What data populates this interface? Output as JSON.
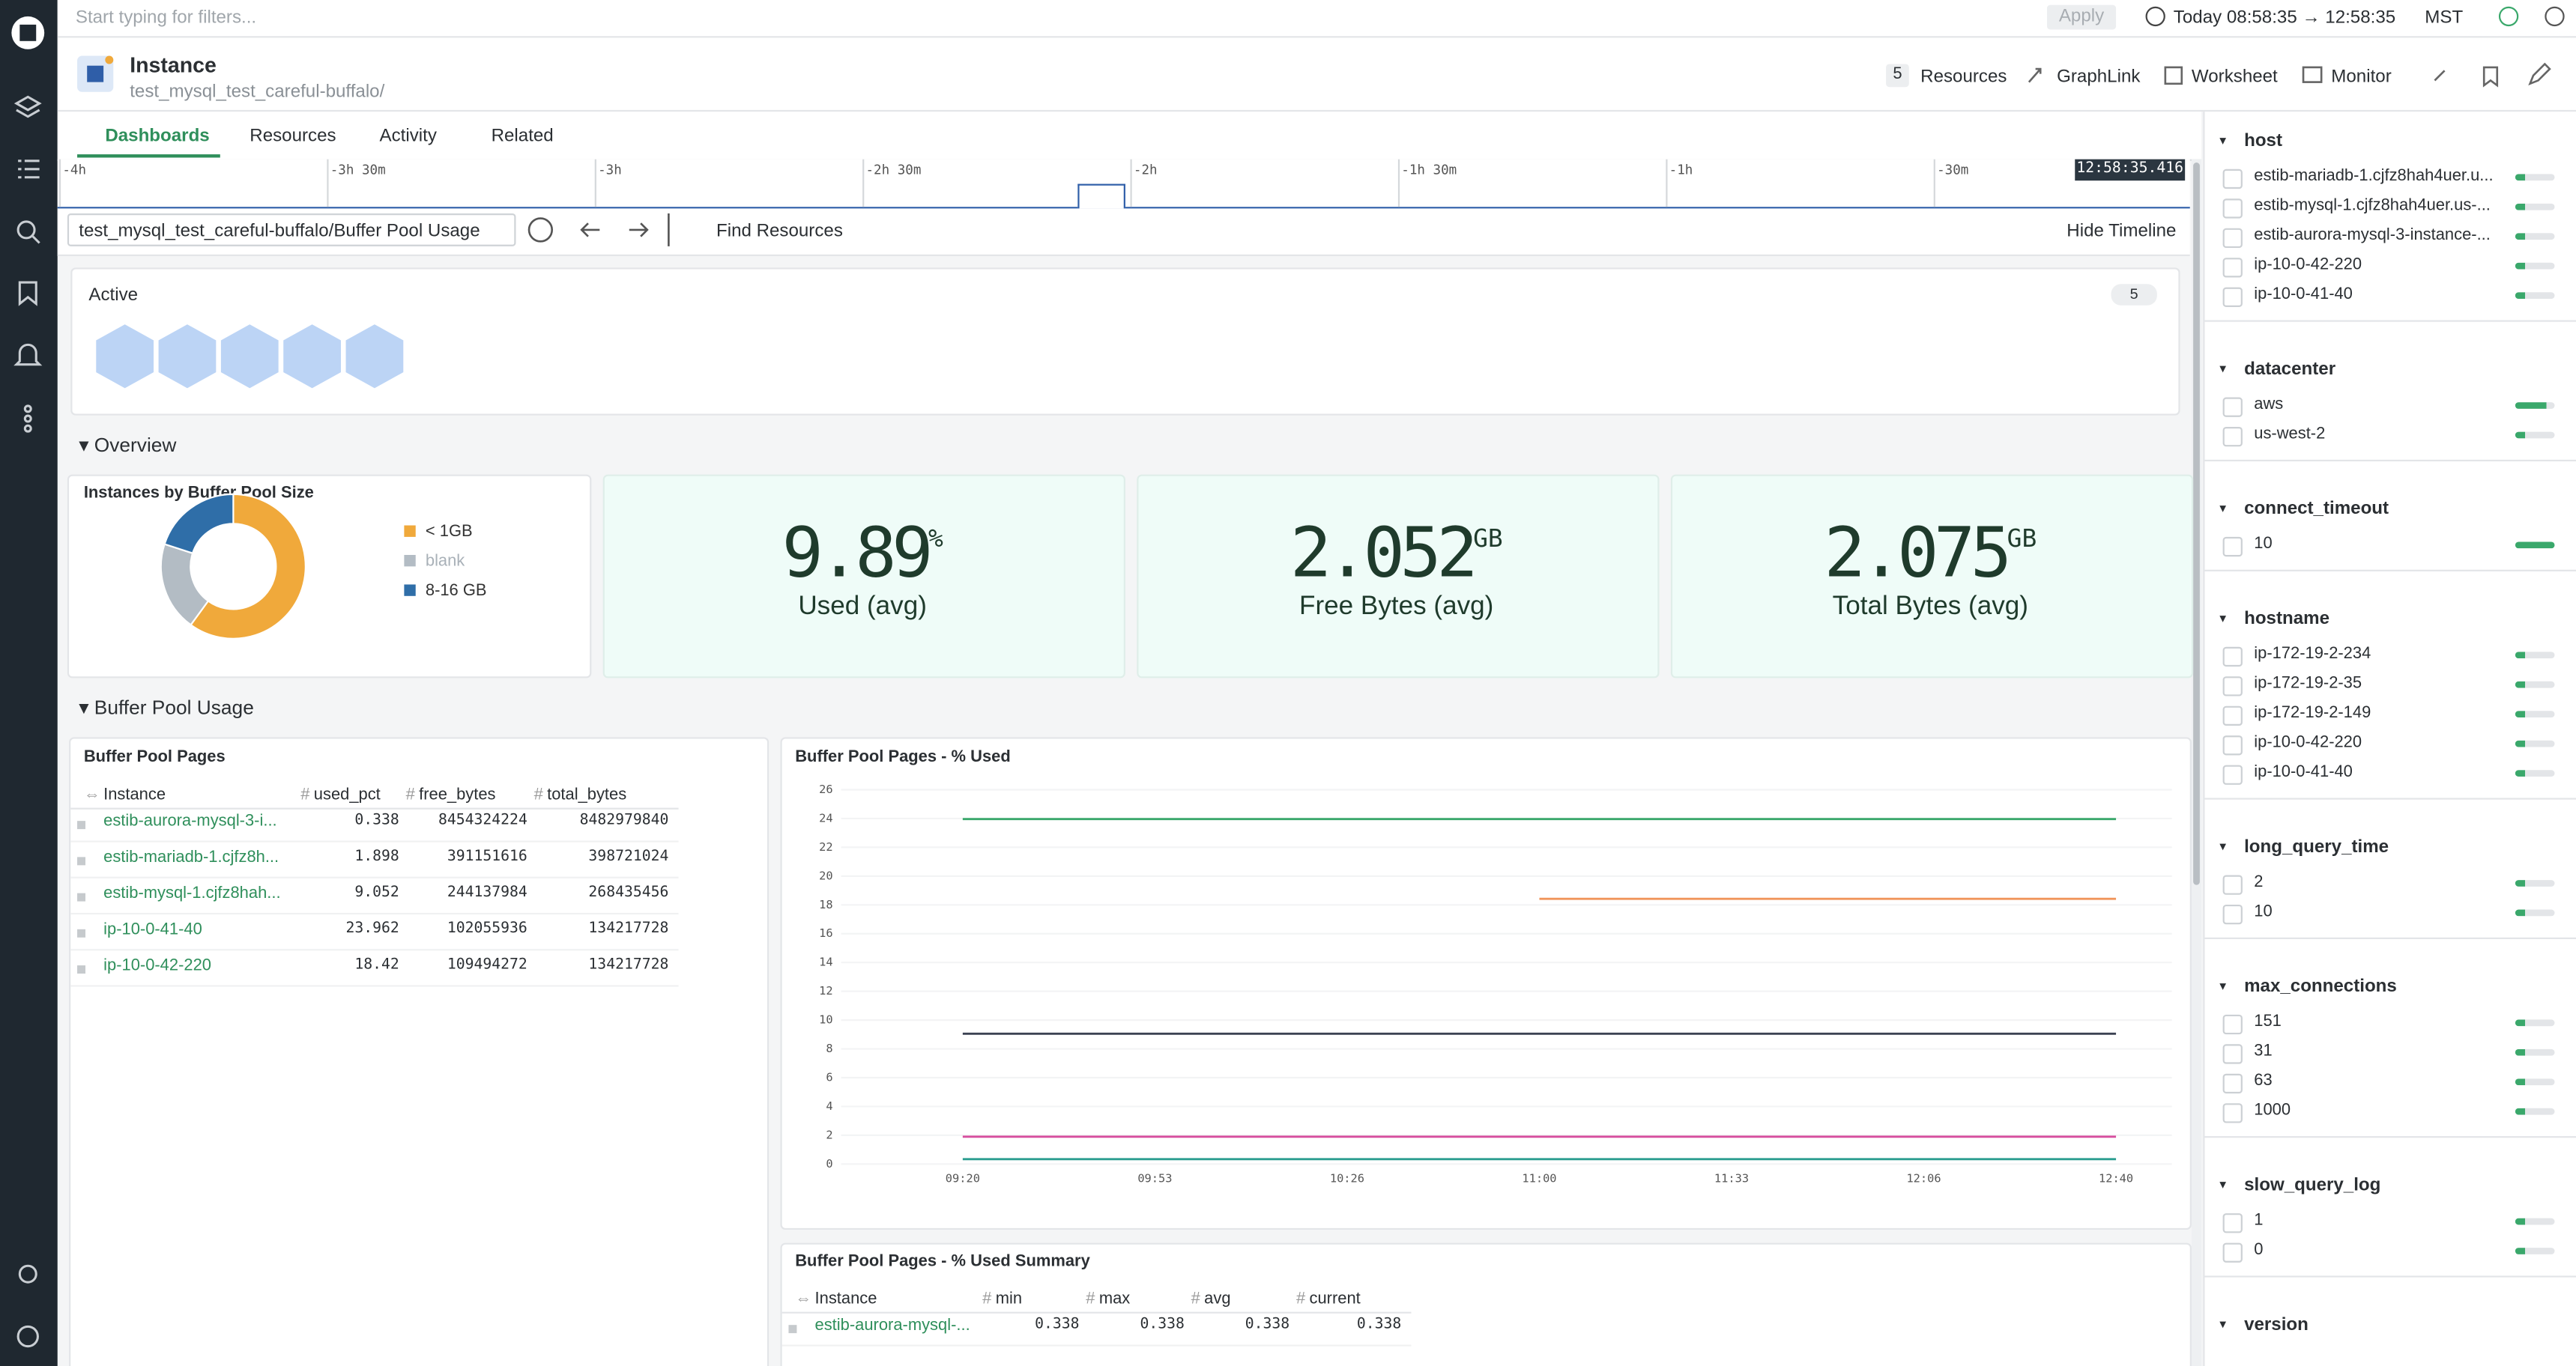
{
  "filter_bar": {
    "placeholder": "Start typing for filters...",
    "apply": "Apply",
    "time_range": "Today 08:58:35 → 12:58:35",
    "timezone": "MST"
  },
  "header": {
    "title": "Instance",
    "subtitle": "test_mysql_test_careful-buffalo/",
    "resource_count": 5,
    "actions": [
      "Resources",
      "GraphLink",
      "Worksheet",
      "Monitor"
    ]
  },
  "tabs": [
    "Dashboards",
    "Resources",
    "Activity",
    "Related"
  ],
  "timeline": {
    "labels": [
      "-4h",
      "-3h 30m",
      "-3h",
      "-2h 30m",
      "-2h",
      "-1h 30m",
      "-1h",
      "-30m"
    ],
    "current": "12:58:35.416"
  },
  "toolbar": {
    "dashboard": "test_mysql_test_careful-buffalo/Buffer Pool Usage",
    "find": "Find Resources",
    "hide": "Hide Timeline"
  },
  "active": {
    "label": "Active",
    "count": 5
  },
  "sections": [
    "Overview",
    "Buffer Pool Usage"
  ],
  "stats": [
    {
      "value": 9.89,
      "unit": "%",
      "label": "Used (avg)"
    },
    {
      "value": 2.052,
      "unit": "GB",
      "label": "Free Bytes (avg)"
    },
    {
      "value": 2.075,
      "unit": "GB",
      "label": "Total Bytes (avg)"
    }
  ],
  "chart_data": [
    {
      "type": "pie",
      "title": "Instances by Buffer Pool Size",
      "categories": [
        "< 1GB",
        "blank",
        "8-16 GB"
      ],
      "values": [
        3,
        1,
        1
      ],
      "colors": [
        "#f0a93b",
        "#b3bcc4",
        "#2f6ea8"
      ]
    },
    {
      "type": "line",
      "title": "Buffer Pool Pages - % Used",
      "categories": [
        "09:20",
        "09:53",
        "10:26",
        "11:00",
        "11:33",
        "12:06",
        "12:40"
      ],
      "ylim": [
        0,
        26
      ],
      "yticks": [
        0,
        2,
        4,
        6,
        8,
        10,
        12,
        14,
        16,
        18,
        20,
        22,
        24,
        26
      ],
      "series": [
        {
          "color": "#3aa86b",
          "values": [
            23.962,
            23.962,
            23.962,
            23.962,
            23.962,
            23.962,
            23.962
          ]
        },
        {
          "color": "#f0955a",
          "values": [
            null,
            null,
            null,
            18.42,
            18.42,
            18.42,
            18.42
          ]
        },
        {
          "color": "#3b4252",
          "values": [
            9.052,
            9.052,
            9.052,
            9.052,
            9.052,
            9.052,
            9.052
          ]
        },
        {
          "color": "#d64e9e",
          "values": [
            1.898,
            1.898,
            1.898,
            1.898,
            1.898,
            1.898,
            1.898
          ]
        },
        {
          "color": "#2a9d8f",
          "values": [
            0.338,
            0.338,
            0.338,
            0.338,
            0.338,
            0.338,
            0.338
          ]
        }
      ]
    }
  ],
  "table": {
    "title": "Buffer Pool Pages",
    "columns": [
      "Instance",
      "used_pct",
      "free_bytes",
      "total_bytes"
    ],
    "rows": [
      [
        "estib-aurora-mysql-3-i...",
        0.338,
        8454324224,
        8482979840
      ],
      [
        "estib-mariadb-1.cjfz8h...",
        1.898,
        391151616,
        398721024
      ],
      [
        "estib-mysql-1.cjfz8hah...",
        9.052,
        244137984,
        268435456
      ],
      [
        "ip-10-0-41-40",
        23.962,
        102055936,
        134217728
      ],
      [
        "ip-10-0-42-220",
        18.42,
        109494272,
        134217728
      ]
    ]
  },
  "summary": {
    "title": "Buffer Pool Pages - % Used Summary",
    "columns": [
      "Instance",
      "min",
      "max",
      "avg",
      "current"
    ],
    "rows": [
      [
        "estib-aurora-mysql-...",
        0.338,
        0.338,
        0.338,
        0.338
      ]
    ]
  },
  "facets": [
    {
      "name": "host",
      "values": [
        "estib-mariadb-1.cjfz8hah4uer.u...",
        "estib-mysql-1.cjfz8hah4uer.us-...",
        "estib-aurora-mysql-3-instance-...",
        "ip-10-0-42-220",
        "ip-10-0-41-40"
      ]
    },
    {
      "name": "datacenter",
      "values": [
        "aws",
        "us-west-2"
      ]
    },
    {
      "name": "connect_timeout",
      "values": [
        "10"
      ]
    },
    {
      "name": "hostname",
      "values": [
        "ip-172-19-2-234",
        "ip-172-19-2-35",
        "ip-172-19-2-149",
        "ip-10-0-42-220",
        "ip-10-0-41-40"
      ]
    },
    {
      "name": "long_query_time",
      "values": [
        "2",
        "10"
      ]
    },
    {
      "name": "max_connections",
      "values": [
        "151",
        "31",
        "63",
        "1000"
      ]
    },
    {
      "name": "slow_query_log",
      "values": [
        "1",
        "0"
      ]
    },
    {
      "name": "version",
      "values": []
    }
  ]
}
